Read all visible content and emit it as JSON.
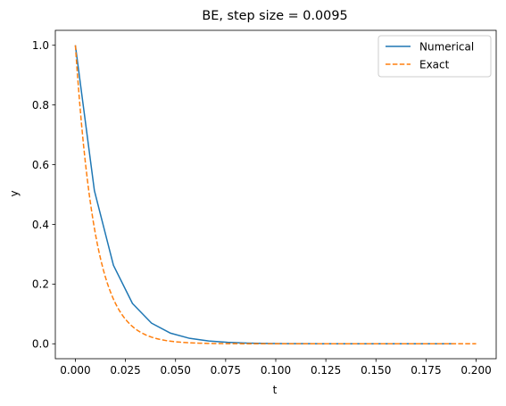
{
  "chart_data": {
    "type": "line",
    "title": "BE, step size = 0.0095",
    "xlabel": "t",
    "ylabel": "y",
    "xlim": [
      -0.01,
      0.21
    ],
    "ylim": [
      -0.05,
      1.05
    ],
    "xticks": [
      0.0,
      0.025,
      0.05,
      0.075,
      0.1,
      0.125,
      0.15,
      0.175,
      0.2
    ],
    "xtick_labels": [
      "0.000",
      "0.025",
      "0.050",
      "0.075",
      "0.100",
      "0.125",
      "0.150",
      "0.175",
      "0.200"
    ],
    "yticks": [
      0.0,
      0.2,
      0.4,
      0.6,
      0.8,
      1.0
    ],
    "ytick_labels": [
      "0.0",
      "0.2",
      "0.4",
      "0.6",
      "0.8",
      "1.0"
    ],
    "grid": false,
    "legend_position": "top-right",
    "series": [
      {
        "name": "Numerical",
        "color": "#1f77b4",
        "style": "solid",
        "x": [
          0.0,
          0.0095,
          0.019,
          0.0285,
          0.038,
          0.0475,
          0.057,
          0.0665,
          0.076,
          0.0855,
          0.095,
          0.1045,
          0.114,
          0.1235,
          0.133,
          0.1425,
          0.152,
          0.1615,
          0.171,
          0.1805,
          0.19
        ],
        "y": [
          1.0,
          0.5128,
          0.263,
          0.1349,
          0.0692,
          0.0355,
          0.0182,
          0.0093,
          0.0048,
          0.0025,
          0.0013,
          0.0006,
          0.0003,
          0.0002,
          0.0001,
          0.0,
          0.0,
          0.0,
          0.0,
          0.0,
          0.0
        ]
      },
      {
        "name": "Exact",
        "color": "#ff7f0e",
        "style": "dashed",
        "function": "exp(-100*t)",
        "x_range": [
          0.0,
          0.2
        ]
      }
    ]
  }
}
